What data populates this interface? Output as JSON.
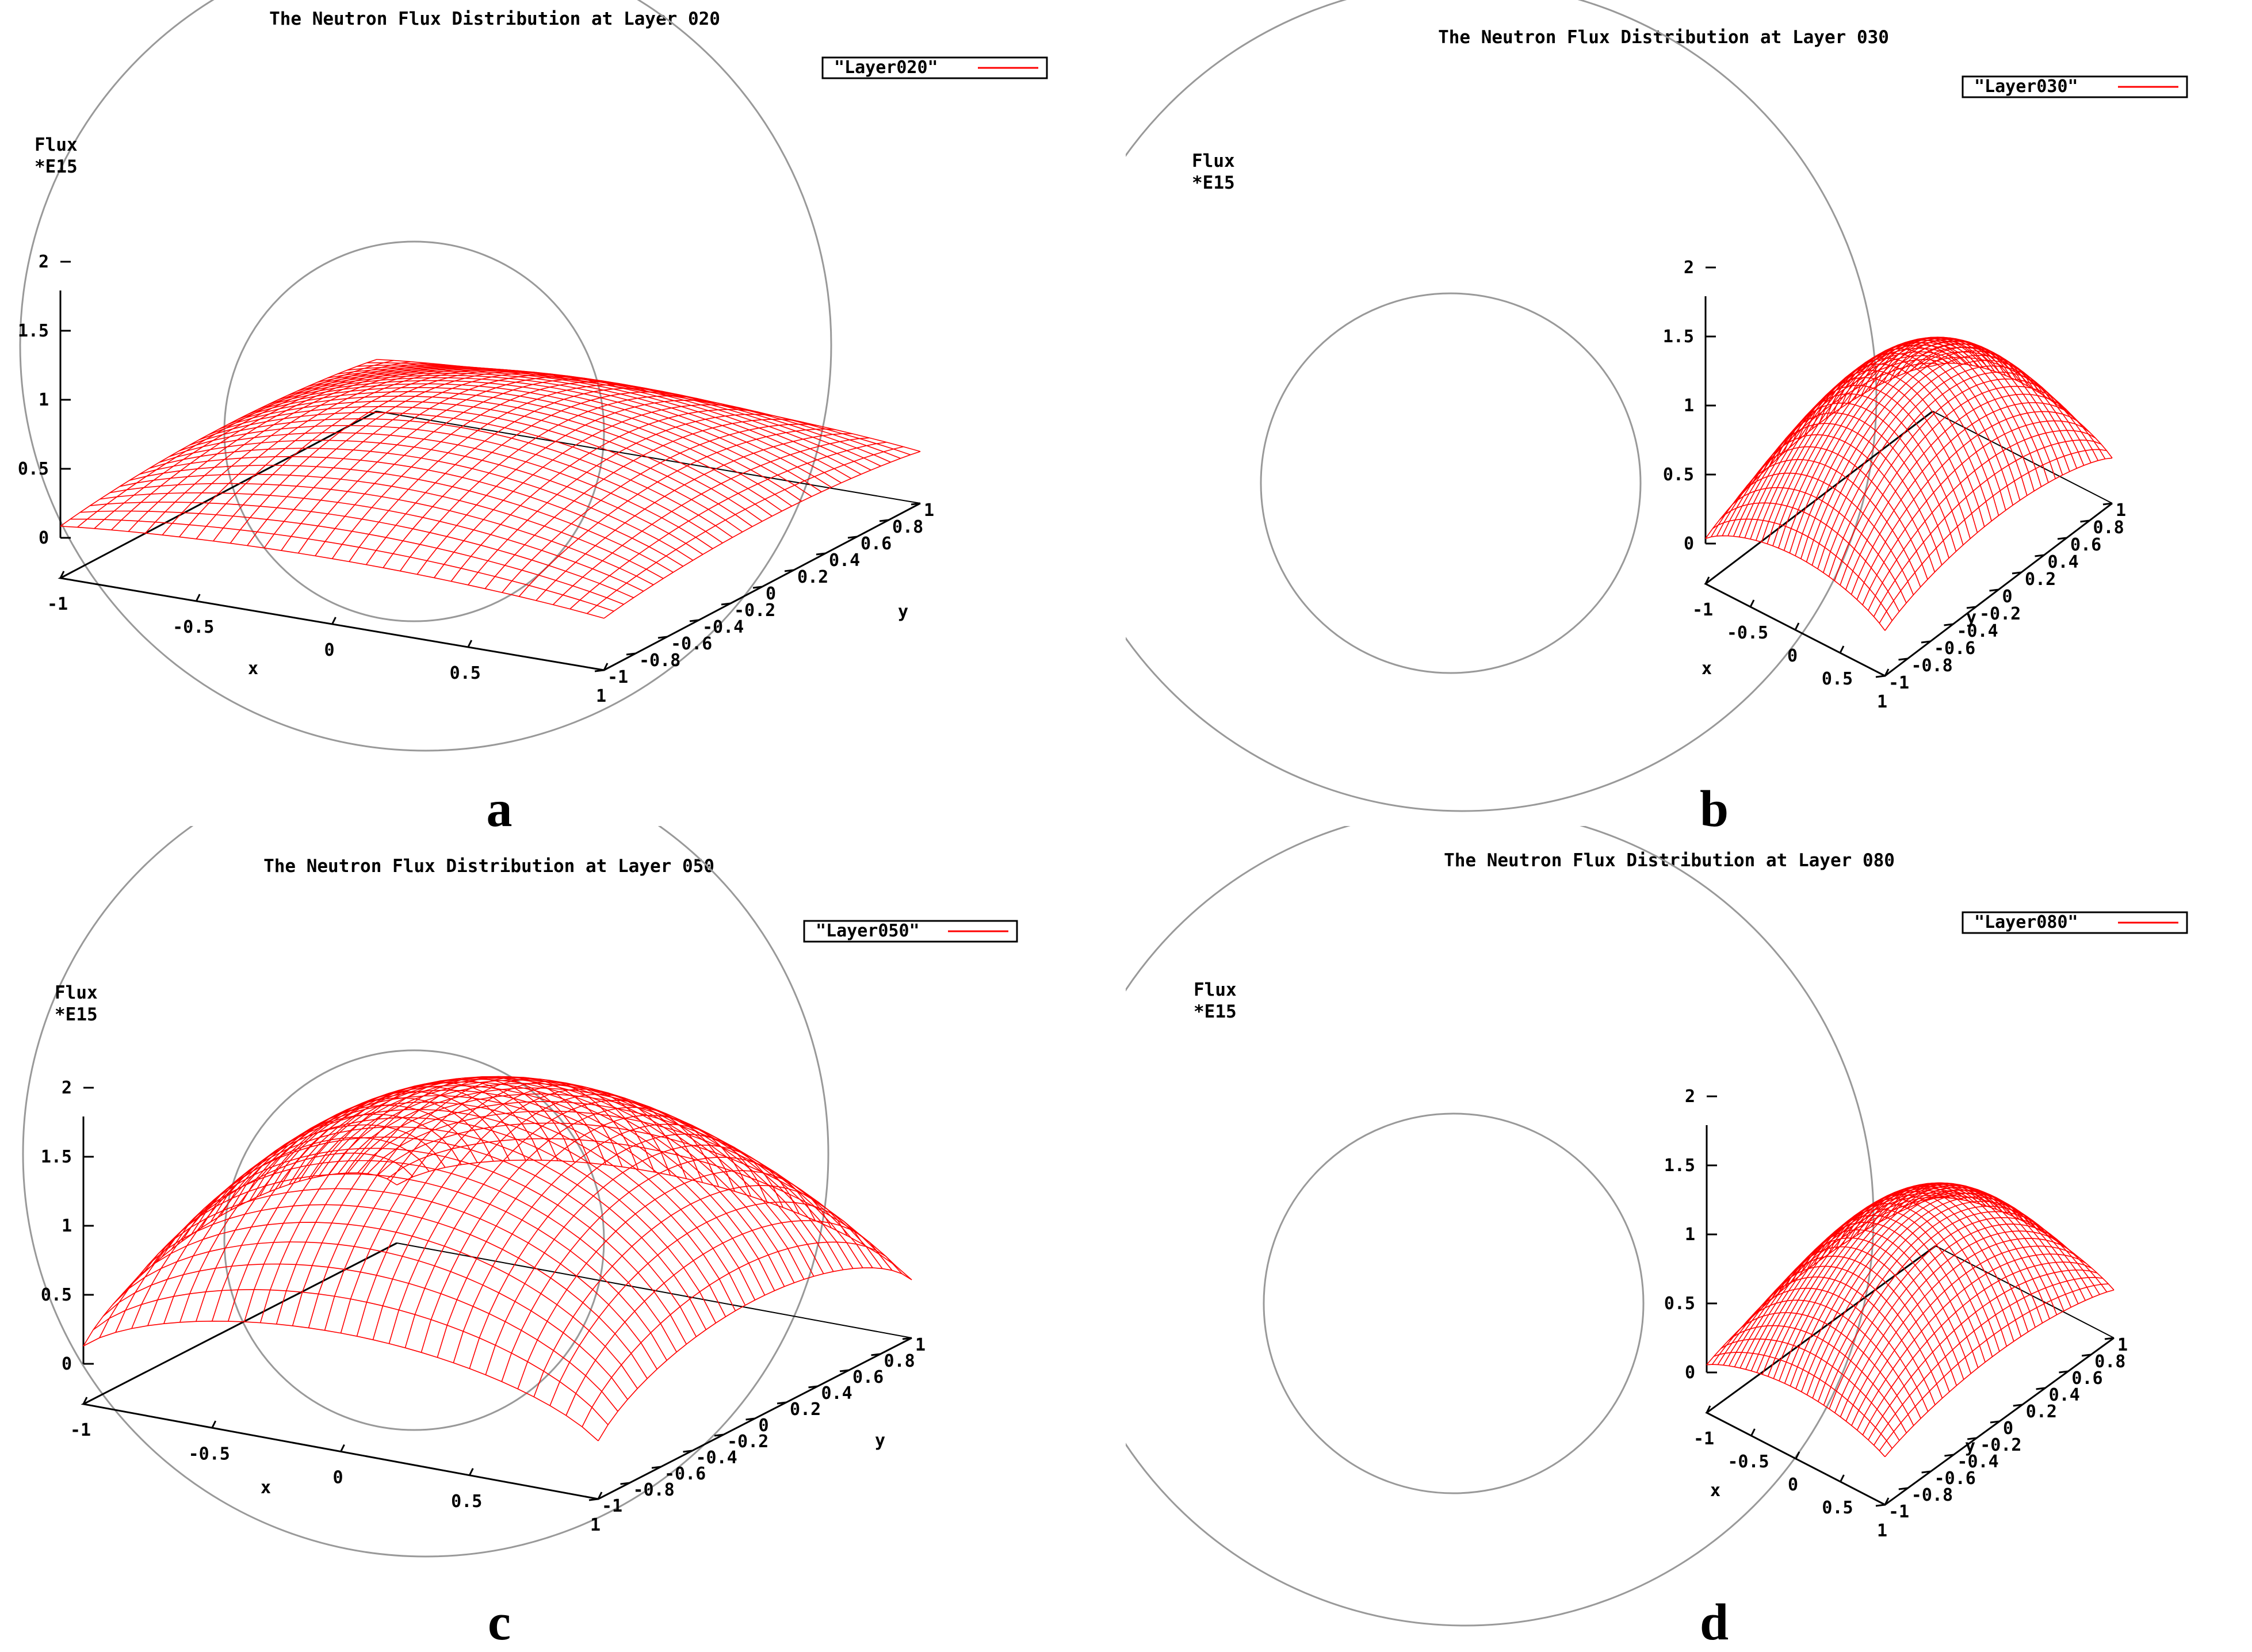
{
  "chart_data": [
    {
      "type": "surface",
      "panel_label": "a",
      "title": "The Neutron Flux Distribution at Layer 020",
      "legend": "\"Layer020\"",
      "zlabel_line1": "Flux",
      "zlabel_line2": "*E15",
      "xlabel": "x",
      "ylabel": "y",
      "z_ticks": [
        "0",
        "0.5",
        "1",
        "1.5",
        "2"
      ],
      "x_ticks": [
        "-1",
        "-0.5",
        "0",
        "0.5",
        "1"
      ],
      "y_ticks": [
        "-1",
        "-0.8",
        "-0.6",
        "-0.4",
        "-0.2",
        "0",
        "0.2",
        "0.4",
        "0.6",
        "0.8",
        "1"
      ],
      "xlim": [
        -1,
        1
      ],
      "ylim": [
        -1,
        1
      ],
      "zlim": [
        0,
        2
      ],
      "peak_flux": 0.95,
      "edge_flux": 0.35,
      "shape_exponent": 1.4,
      "series_color": "#ff0000"
    },
    {
      "type": "surface",
      "panel_label": "b",
      "title": "The Neutron Flux Distribution at Layer 030",
      "legend": "\"Layer030\"",
      "zlabel_line1": "Flux",
      "zlabel_line2": "*E15",
      "xlabel": "x",
      "ylabel": "y",
      "z_ticks": [
        "0",
        "0.5",
        "1",
        "1.5",
        "2"
      ],
      "x_ticks": [
        "-1",
        "-0.5",
        "0",
        "0.5",
        "1"
      ],
      "y_ticks": [
        "-1",
        "-0.8",
        "-0.6",
        "-0.4",
        "-0.2",
        "0",
        "0.2",
        "0.4",
        "0.6",
        "0.8",
        "1"
      ],
      "xlim": [
        -1,
        1
      ],
      "ylim": [
        -1,
        1
      ],
      "zlim": [
        0,
        2
      ],
      "peak_flux": 1.3,
      "edge_flux": 0.25,
      "shape_exponent": 1.7,
      "series_color": "#ff0000"
    },
    {
      "type": "surface",
      "panel_label": "c",
      "title": "The Neutron Flux Distribution at Layer 050",
      "legend": "\"Layer050\"",
      "zlabel_line1": "Flux",
      "zlabel_line2": "*E15",
      "xlabel": "x",
      "ylabel": "y",
      "z_ticks": [
        "0",
        "0.5",
        "1",
        "1.5",
        "2"
      ],
      "x_ticks": [
        "-1",
        "-0.5",
        "0",
        "0.5",
        "1"
      ],
      "y_ticks": [
        "-1",
        "-0.8",
        "-0.6",
        "-0.4",
        "-0.2",
        "0",
        "0.2",
        "0.4",
        "0.6",
        "0.8",
        "1"
      ],
      "xlim": [
        -1,
        1
      ],
      "ylim": [
        -1,
        1
      ],
      "zlim": [
        0,
        2
      ],
      "peak_flux": 2.0,
      "edge_flux": 0.15,
      "shape_exponent": 2.3,
      "series_color": "#ff0000"
    },
    {
      "type": "surface",
      "panel_label": "d",
      "title": "The Neutron Flux Distribution at Layer 080",
      "legend": "\"Layer080\"",
      "zlabel_line1": "Flux",
      "zlabel_line2": "*E15",
      "xlabel": "x",
      "ylabel": "y",
      "z_ticks": [
        "0",
        "0.5",
        "1",
        "1.5",
        "2"
      ],
      "x_ticks": [
        "-1",
        "-0.5",
        "0",
        "0.5",
        "1"
      ],
      "y_ticks": [
        "-1",
        "-0.8",
        "-0.6",
        "-0.4",
        "-0.2",
        "0",
        "0.2",
        "0.4",
        "0.6",
        "0.8",
        "1"
      ],
      "xlim": [
        -1,
        1
      ],
      "ylim": [
        -1,
        1
      ],
      "zlim": [
        0,
        2
      ],
      "peak_flux": 1.2,
      "edge_flux": 0.3,
      "shape_exponent": 1.5,
      "series_color": "#ff0000"
    }
  ]
}
